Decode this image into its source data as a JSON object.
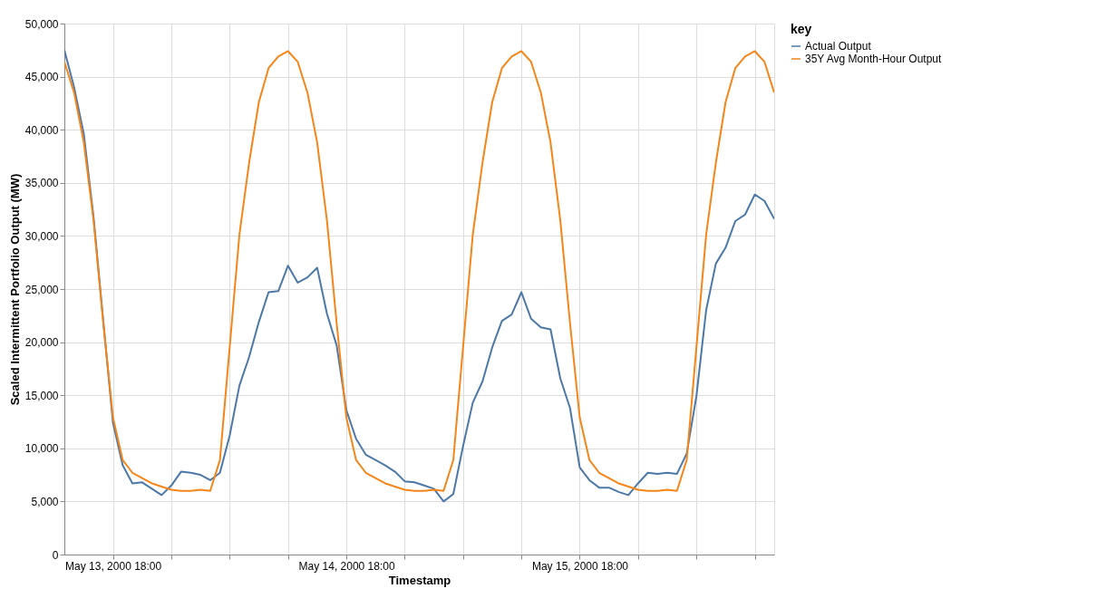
{
  "chart_data": {
    "type": "line",
    "xlabel": "Timestamp",
    "ylabel": "Scaled Intermittent Portfolio Output (MW)",
    "legend_title": "key",
    "x": [
      "2000-05-13T13:00",
      "2000-05-13T14:00",
      "2000-05-13T15:00",
      "2000-05-13T16:00",
      "2000-05-13T17:00",
      "2000-05-13T18:00",
      "2000-05-13T19:00",
      "2000-05-13T20:00",
      "2000-05-13T21:00",
      "2000-05-13T22:00",
      "2000-05-13T23:00",
      "2000-05-14T00:00",
      "2000-05-14T01:00",
      "2000-05-14T02:00",
      "2000-05-14T03:00",
      "2000-05-14T04:00",
      "2000-05-14T05:00",
      "2000-05-14T06:00",
      "2000-05-14T07:00",
      "2000-05-14T08:00",
      "2000-05-14T09:00",
      "2000-05-14T10:00",
      "2000-05-14T11:00",
      "2000-05-14T12:00",
      "2000-05-14T13:00",
      "2000-05-14T14:00",
      "2000-05-14T15:00",
      "2000-05-14T16:00",
      "2000-05-14T17:00",
      "2000-05-14T18:00",
      "2000-05-14T19:00",
      "2000-05-14T20:00",
      "2000-05-14T21:00",
      "2000-05-14T22:00",
      "2000-05-14T23:00",
      "2000-05-15T00:00",
      "2000-05-15T01:00",
      "2000-05-15T02:00",
      "2000-05-15T03:00",
      "2000-05-15T04:00",
      "2000-05-15T05:00",
      "2000-05-15T06:00",
      "2000-05-15T07:00",
      "2000-05-15T08:00",
      "2000-05-15T09:00",
      "2000-05-15T10:00",
      "2000-05-15T11:00",
      "2000-05-15T12:00",
      "2000-05-15T13:00",
      "2000-05-15T14:00",
      "2000-05-15T15:00",
      "2000-05-15T16:00",
      "2000-05-15T17:00",
      "2000-05-15T18:00",
      "2000-05-15T19:00",
      "2000-05-15T20:00",
      "2000-05-15T21:00",
      "2000-05-15T22:00",
      "2000-05-15T23:00",
      "2000-05-16T00:00",
      "2000-05-16T01:00",
      "2000-05-16T02:00",
      "2000-05-16T03:00",
      "2000-05-16T04:00",
      "2000-05-16T05:00",
      "2000-05-16T06:00",
      "2000-05-16T07:00",
      "2000-05-16T08:00",
      "2000-05-16T09:00",
      "2000-05-16T10:00",
      "2000-05-16T11:00",
      "2000-05-16T12:00",
      "2000-05-16T13:00",
      "2000-05-16T14:00"
    ],
    "series": [
      {
        "name": "Actual Output",
        "color": "#4c78a8",
        "values": [
          47500,
          44000,
          39600,
          31800,
          22000,
          12400,
          8400,
          6700,
          6800,
          6200,
          5600,
          6500,
          7800,
          7700,
          7500,
          7000,
          7700,
          11200,
          15900,
          18600,
          21900,
          24700,
          24800,
          27200,
          25600,
          26100,
          27000,
          22700,
          19700,
          13600,
          10900,
          9400,
          8900,
          8400,
          7800,
          6900,
          6800,
          6500,
          6200,
          5000,
          5700,
          10200,
          14300,
          16300,
          19500,
          22000,
          22600,
          24700,
          22200,
          21400,
          21200,
          16600,
          13800,
          8200,
          7000,
          6300,
          6300,
          5900,
          5600,
          6700,
          7700,
          7600,
          7700,
          7600,
          9500,
          14900,
          23000,
          27400,
          28900,
          31400,
          32000,
          33900,
          33300,
          31600
        ]
      },
      {
        "name": "35Y Avg Month-Hour Output",
        "color": "#f58518",
        "values": [
          46400,
          43500,
          38800,
          31500,
          21800,
          12900,
          8900,
          7700,
          7200,
          6700,
          6400,
          6100,
          6000,
          6000,
          6100,
          6000,
          8900,
          19500,
          30100,
          36900,
          42600,
          45800,
          46900,
          47400,
          46400,
          43500,
          38800,
          31500,
          21800,
          12900,
          8900,
          7700,
          7200,
          6700,
          6400,
          6100,
          6000,
          6000,
          6100,
          6000,
          8900,
          19500,
          30100,
          36900,
          42600,
          45800,
          46900,
          47400,
          46400,
          43500,
          38800,
          31500,
          21800,
          12900,
          8900,
          7700,
          7200,
          6700,
          6400,
          6100,
          6000,
          6000,
          6100,
          6000,
          8900,
          19500,
          30100,
          36900,
          42600,
          45800,
          46900,
          47400,
          46400,
          43500
        ]
      }
    ],
    "xlim": [
      "2000-05-13T13:00",
      "2000-05-16T14:00"
    ],
    "xticks": [
      {
        "value": "2000-05-13T18:00",
        "label": "May 13, 2000 18:00"
      },
      {
        "value": "2000-05-14T00:00",
        "label": null
      },
      {
        "value": "2000-05-14T06:00",
        "label": null
      },
      {
        "value": "2000-05-14T12:00",
        "label": null
      },
      {
        "value": "2000-05-14T18:00",
        "label": "May 14, 2000 18:00"
      },
      {
        "value": "2000-05-15T00:00",
        "label": null
      },
      {
        "value": "2000-05-15T06:00",
        "label": null
      },
      {
        "value": "2000-05-15T12:00",
        "label": null
      },
      {
        "value": "2000-05-15T18:00",
        "label": "May 15, 2000 18:00"
      },
      {
        "value": "2000-05-16T00:00",
        "label": null
      },
      {
        "value": "2000-05-16T06:00",
        "label": null
      },
      {
        "value": "2000-05-16T12:00",
        "label": null
      }
    ],
    "ylim": [
      0,
      50000
    ],
    "yticks": [
      0,
      {
        "value": 5000,
        "label": "5,000"
      },
      {
        "value": 10000,
        "label": "10,000"
      },
      {
        "value": 15000,
        "label": "15,000"
      },
      {
        "value": 20000,
        "label": "20,000"
      },
      {
        "value": 25000,
        "label": "25,000"
      },
      {
        "value": 30000,
        "label": "30,000"
      },
      {
        "value": 35000,
        "label": "35,000"
      },
      {
        "value": 40000,
        "label": "40,000"
      },
      {
        "value": 45000,
        "label": "45,000"
      },
      {
        "value": 50000,
        "label": "50,000"
      }
    ],
    "grid": true,
    "legend": "top right"
  }
}
